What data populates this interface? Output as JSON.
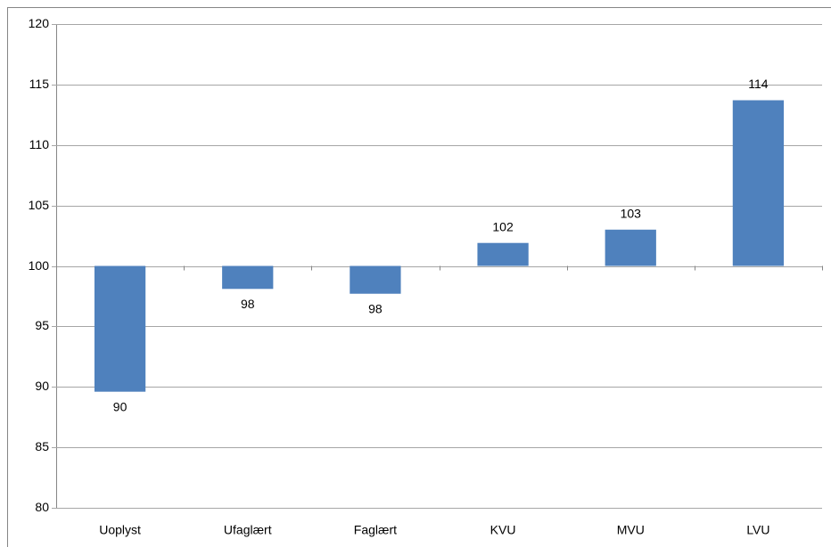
{
  "chart_data": {
    "type": "bar",
    "categories": [
      "Uoplyst",
      "Ufaglært",
      "Faglært",
      "KVU",
      "MVU",
      "LVU"
    ],
    "values": [
      89.6,
      98.1,
      97.7,
      101.9,
      103.0,
      113.7
    ],
    "value_labels": [
      "90",
      "98",
      "98",
      "102",
      "103",
      "114"
    ],
    "bar_base": 100,
    "color": "#4f81bd",
    "ylim": [
      80,
      120
    ],
    "yticks": [
      80,
      85,
      90,
      95,
      100,
      105,
      110,
      115,
      120
    ],
    "grid": true
  }
}
